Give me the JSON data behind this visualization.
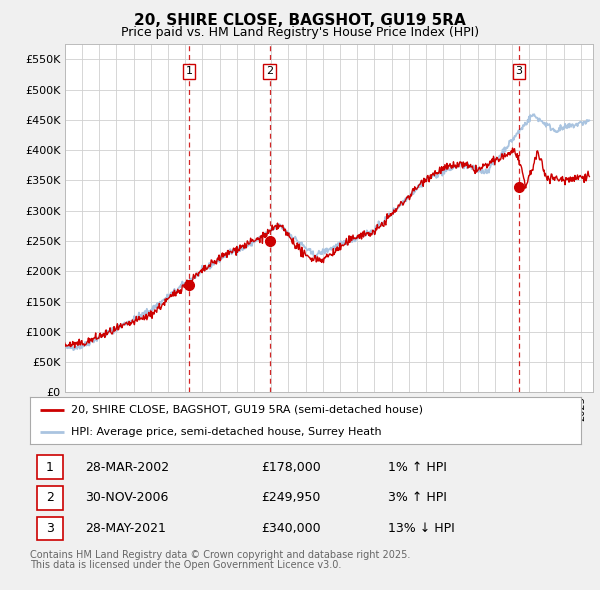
{
  "title": "20, SHIRE CLOSE, BAGSHOT, GU19 5RA",
  "subtitle": "Price paid vs. HM Land Registry's House Price Index (HPI)",
  "ylabel_ticks": [
    "£0",
    "£50K",
    "£100K",
    "£150K",
    "£200K",
    "£250K",
    "£300K",
    "£350K",
    "£400K",
    "£450K",
    "£500K",
    "£550K"
  ],
  "ytick_values": [
    0,
    50000,
    100000,
    150000,
    200000,
    250000,
    300000,
    350000,
    400000,
    450000,
    500000,
    550000
  ],
  "ylim": [
    0,
    575000
  ],
  "hpi_color": "#aac4e0",
  "price_color": "#cc0000",
  "sale_line_color": "#cc0000",
  "sale_marker_color": "#cc0000",
  "sales": [
    {
      "date_num": 2002.23,
      "price": 178000,
      "label": "1",
      "date_str": "28-MAR-2002",
      "pct": "1%",
      "dir": "↑"
    },
    {
      "date_num": 2006.92,
      "price": 249950,
      "label": "2",
      "date_str": "30-NOV-2006",
      "pct": "3%",
      "dir": "↑"
    },
    {
      "date_num": 2021.41,
      "price": 340000,
      "label": "3",
      "date_str": "28-MAY-2021",
      "pct": "13%",
      "dir": "↓"
    }
  ],
  "legend_line1": "20, SHIRE CLOSE, BAGSHOT, GU19 5RA (semi-detached house)",
  "legend_line2": "HPI: Average price, semi-detached house, Surrey Heath",
  "footer_line1": "Contains HM Land Registry data © Crown copyright and database right 2025.",
  "footer_line2": "This data is licensed under the Open Government Licence v3.0.",
  "background_color": "#f0f0f0",
  "plot_background": "#ffffff",
  "grid_color": "#d0d0d0"
}
